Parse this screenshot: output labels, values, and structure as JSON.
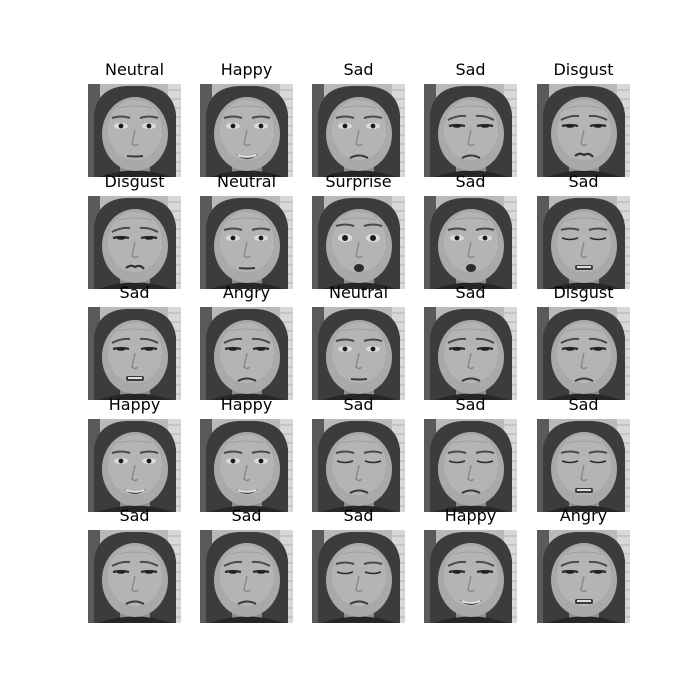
{
  "rows": [
    [
      {
        "label": "Neutral",
        "expression": "neutral",
        "eyes": "open"
      },
      {
        "label": "Happy",
        "expression": "smile",
        "eyes": "open"
      },
      {
        "label": "Sad",
        "expression": "sad",
        "eyes": "open"
      },
      {
        "label": "Sad",
        "expression": "sad",
        "eyes": "squint"
      },
      {
        "label": "Disgust",
        "expression": "disgust",
        "eyes": "squint"
      }
    ],
    [
      {
        "label": "Disgust",
        "expression": "disgust",
        "eyes": "squint"
      },
      {
        "label": "Neutral",
        "expression": "neutral",
        "eyes": "open"
      },
      {
        "label": "Surprise",
        "expression": "surprise",
        "eyes": "wide"
      },
      {
        "label": "Sad",
        "expression": "surprise",
        "eyes": "open"
      },
      {
        "label": "Sad",
        "expression": "teeth",
        "eyes": "closed"
      }
    ],
    [
      {
        "label": "Sad",
        "expression": "teeth",
        "eyes": "squint"
      },
      {
        "label": "Angry",
        "expression": "sad",
        "eyes": "squint"
      },
      {
        "label": "Neutral",
        "expression": "neutral",
        "eyes": "open"
      },
      {
        "label": "Sad",
        "expression": "sad",
        "eyes": "squint"
      },
      {
        "label": "Disgust",
        "expression": "sad",
        "eyes": "squint"
      }
    ],
    [
      {
        "label": "Happy",
        "expression": "smile",
        "eyes": "open"
      },
      {
        "label": "Happy",
        "expression": "smile",
        "eyes": "open"
      },
      {
        "label": "Sad",
        "expression": "sad",
        "eyes": "closed"
      },
      {
        "label": "Sad",
        "expression": "sad",
        "eyes": "closed"
      },
      {
        "label": "Sad",
        "expression": "teeth",
        "eyes": "closed"
      }
    ],
    [
      {
        "label": "Sad",
        "expression": "sad",
        "eyes": "squint"
      },
      {
        "label": "Sad",
        "expression": "sad",
        "eyes": "squint"
      },
      {
        "label": "Sad",
        "expression": "sad",
        "eyes": "closed"
      },
      {
        "label": "Happy",
        "expression": "smile",
        "eyes": "squint"
      },
      {
        "label": "Angry",
        "expression": "teeth",
        "eyes": "squint"
      }
    ]
  ]
}
